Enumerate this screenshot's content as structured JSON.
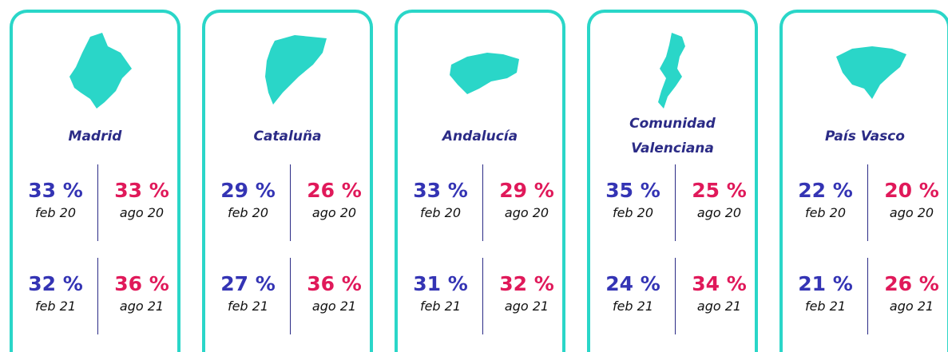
{
  "cards": [
    {
      "name": "Madrid",
      "rows": [
        [
          {
            "value": "33 %",
            "date": "feb 20"
          },
          {
            "value": "33 %",
            "date": "ago 20"
          }
        ],
        [
          {
            "value": "32 %",
            "date": "feb 21"
          },
          {
            "value": "36 %",
            "date": "ago 21"
          }
        ]
      ]
    },
    {
      "name": "Cataluña",
      "rows": [
        [
          {
            "value": "29 %",
            "date": "feb 20"
          },
          {
            "value": "26 %",
            "date": "ago 20"
          }
        ],
        [
          {
            "value": "27 %",
            "date": "feb 21"
          },
          {
            "value": "36 %",
            "date": "ago 21"
          }
        ]
      ]
    },
    {
      "name": "Andalucía",
      "rows": [
        [
          {
            "value": "33 %",
            "date": "feb 20"
          },
          {
            "value": "29 %",
            "date": "ago 20"
          }
        ],
        [
          {
            "value": "31 %",
            "date": "feb 21"
          },
          {
            "value": "32 %",
            "date": "ago 21"
          }
        ]
      ]
    },
    {
      "name": "Comunidad Valenciana",
      "rows": [
        [
          {
            "value": "35 %",
            "date": "feb 20"
          },
          {
            "value": "25 %",
            "date": "ago 20"
          }
        ],
        [
          {
            "value": "24 %",
            "date": "feb 21"
          },
          {
            "value": "34 %",
            "date": "ago 21"
          }
        ]
      ]
    },
    {
      "name": "País Vasco",
      "rows": [
        [
          {
            "value": "22 %",
            "date": "feb 20"
          },
          {
            "value": "20 %",
            "date": "ago 20"
          }
        ],
        [
          {
            "value": "21 %",
            "date": "feb 21"
          },
          {
            "value": "26 %",
            "date": "ago 21"
          }
        ]
      ]
    }
  ]
}
